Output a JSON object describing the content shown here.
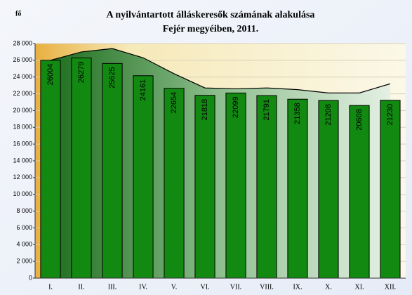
{
  "chart_data": {
    "type": "bar",
    "title": "A nyilvántartott álláskeresők számának alakulása",
    "subtitle": "Fejér megyéiben, 2011.",
    "y_label": "fő",
    "categories": [
      "I.",
      "II.",
      "III.",
      "IV.",
      "V.",
      "VI.",
      "VII.",
      "VIII.",
      "IX.",
      "X.",
      "XI.",
      "XII."
    ],
    "series": [
      {
        "type": "bar",
        "color": "#128a12",
        "values": [
          26004,
          26279,
          25625,
          24161,
          22654,
          21818,
          22099,
          21791,
          21358,
          21208,
          20608,
          21230
        ]
      },
      {
        "type": "area",
        "color": "#2a7a2a",
        "values": [
          26000,
          27000,
          27400,
          26300,
          24400,
          22700,
          22600,
          22700,
          22500,
          22100,
          22100,
          23200
        ]
      }
    ],
    "ylim": [
      0,
      28000
    ],
    "yticks": [
      0,
      {
        "value": 2000,
        "label": "2 000"
      },
      {
        "value": 4000,
        "label": "4 000"
      },
      {
        "value": 6000,
        "label": "6 000"
      },
      {
        "value": 8000,
        "label": "8 000"
      },
      {
        "value": 10000,
        "label": "10 000"
      },
      {
        "value": 12000,
        "label": "12 000"
      },
      {
        "value": 14000,
        "label": "14 000"
      },
      {
        "value": 16000,
        "label": "16 000"
      },
      {
        "value": 18000,
        "label": "18 000"
      },
      {
        "value": 20000,
        "label": "20 000"
      },
      {
        "value": 22000,
        "label": "22 000"
      },
      {
        "value": 24000,
        "label": "24 000"
      },
      {
        "value": 26000,
        "label": "26 000"
      },
      {
        "value": 28000,
        "label": "28 000"
      }
    ],
    "grid": true
  }
}
